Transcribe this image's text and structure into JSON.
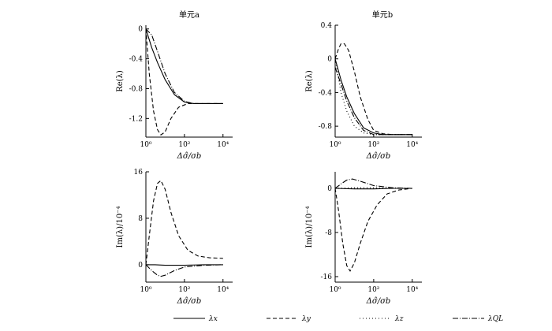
{
  "chart_data": [
    {
      "type": "line",
      "id": "top-left",
      "title": "单元a",
      "xlabel": "Δσ̂/σb",
      "ylabel": "Re(λ)",
      "x_scale": "log",
      "xlim": [
        1,
        31623
      ],
      "ylim": [
        -1.45,
        0.05
      ],
      "xticks": [
        1,
        100,
        10000
      ],
      "xtick_labels": [
        "10⁰",
        "10²",
        "10⁴"
      ],
      "yticks": [
        0,
        -0.4,
        -0.8,
        -1.2
      ],
      "ytick_labels": [
        "0",
        "-0.4",
        "-0.8",
        "-1.2"
      ],
      "series": [
        {
          "name": "λx",
          "style": "solid",
          "x": [
            1,
            2,
            4,
            10,
            30,
            100,
            300,
            1000,
            10000
          ],
          "y": [
            0,
            -0.25,
            -0.45,
            -0.68,
            -0.88,
            -0.98,
            -1.0,
            -1.0,
            -1.0
          ]
        },
        {
          "name": "λy",
          "style": "dashed",
          "x": [
            1,
            1.5,
            2.5,
            4,
            6,
            10,
            20,
            50,
            150,
            500,
            2000,
            10000
          ],
          "y": [
            0,
            -0.6,
            -1.1,
            -1.35,
            -1.42,
            -1.38,
            -1.2,
            -1.05,
            -1.0,
            -1.0,
            -1.0,
            -1.0
          ]
        },
        {
          "name": "λQL",
          "style": "dashdot",
          "x": [
            1,
            2,
            4,
            10,
            30,
            100,
            300,
            1000,
            10000
          ],
          "y": [
            0,
            -0.08,
            -0.3,
            -0.6,
            -0.85,
            -0.97,
            -1.0,
            -1.0,
            -1.0
          ]
        }
      ]
    },
    {
      "type": "line",
      "id": "top-right",
      "title": "单元b",
      "xlabel": "Δσ̂/σb",
      "ylabel": "Re(λ)",
      "x_scale": "log",
      "xlim": [
        1,
        31623
      ],
      "ylim": [
        -0.93,
        0.4
      ],
      "xticks": [
        1,
        100,
        10000
      ],
      "xtick_labels": [
        "10⁰",
        "10²",
        "10⁴"
      ],
      "yticks": [
        0.4,
        0,
        -0.4,
        -0.8
      ],
      "ytick_labels": [
        "0.4",
        "0",
        "-0.4",
        "-0.8"
      ],
      "series": [
        {
          "name": "λx",
          "style": "solid",
          "x": [
            1,
            2,
            4,
            10,
            30,
            100,
            300,
            1000,
            10000
          ],
          "y": [
            0,
            -0.25,
            -0.45,
            -0.65,
            -0.82,
            -0.88,
            -0.9,
            -0.9,
            -0.9
          ]
        },
        {
          "name": "λy",
          "style": "dashed",
          "x": [
            1,
            1.5,
            2,
            3,
            5,
            10,
            20,
            50,
            100,
            300,
            1000,
            10000
          ],
          "y": [
            0,
            0.12,
            0.18,
            0.18,
            0.1,
            -0.15,
            -0.45,
            -0.72,
            -0.85,
            -0.89,
            -0.9,
            -0.9
          ]
        },
        {
          "name": "λz",
          "style": "dotdash",
          "x": [
            1,
            2,
            4,
            10,
            30,
            100,
            300,
            1000,
            10000
          ],
          "y": [
            0,
            -0.4,
            -0.62,
            -0.8,
            -0.88,
            -0.9,
            -0.9,
            -0.9,
            -0.9
          ]
        },
        {
          "name": "λQL",
          "style": "dashdot",
          "x": [
            1,
            2,
            4,
            10,
            30,
            100,
            300,
            1000,
            10000
          ],
          "y": [
            -0.1,
            -0.3,
            -0.5,
            -0.7,
            -0.85,
            -0.9,
            -0.9,
            -0.9,
            -0.9
          ]
        }
      ]
    },
    {
      "type": "line",
      "id": "bottom-left",
      "title": "",
      "xlabel": "Δσ̂/σb",
      "ylabel": "Im(λ)/10⁻⁴",
      "x_scale": "log",
      "xlim": [
        1,
        31623
      ],
      "ylim": [
        -3,
        16
      ],
      "xticks": [
        1,
        100,
        10000
      ],
      "xtick_labels": [
        "10⁰",
        "10²",
        "10⁴"
      ],
      "yticks": [
        16,
        8,
        0
      ],
      "ytick_labels": [
        "16",
        "8",
        "0"
      ],
      "series": [
        {
          "name": "λx",
          "style": "solid",
          "x": [
            1,
            3,
            10,
            100,
            1000,
            10000
          ],
          "y": [
            0,
            0,
            -0.1,
            -0.1,
            0,
            0
          ]
        },
        {
          "name": "λy",
          "style": "dashed",
          "x": [
            1,
            1.5,
            2.5,
            4,
            6,
            10,
            20,
            50,
            150,
            500,
            2000,
            10000
          ],
          "y": [
            0,
            5,
            11,
            14,
            14.5,
            13,
            9,
            5,
            2.5,
            1.5,
            1.2,
            1.1
          ]
        },
        {
          "name": "λQL",
          "style": "dashdot",
          "x": [
            1,
            2,
            4,
            6,
            10,
            30,
            100,
            1000,
            10000
          ],
          "y": [
            0,
            -1,
            -1.8,
            -2,
            -1.8,
            -1,
            -0.4,
            -0.1,
            0
          ]
        }
      ]
    },
    {
      "type": "line",
      "id": "bottom-right",
      "title": "",
      "xlabel": "Δσ̂/σb",
      "ylabel": "Im(λ)/10⁻⁴",
      "x_scale": "log",
      "xlim": [
        1,
        31623
      ],
      "ylim": [
        -17,
        3
      ],
      "xticks": [
        1,
        100,
        10000
      ],
      "xtick_labels": [
        "10⁰",
        "10²",
        "10⁴"
      ],
      "yticks": [
        0,
        -8,
        -16
      ],
      "ytick_labels": [
        "0",
        "-8",
        "-16"
      ],
      "series": [
        {
          "name": "λx",
          "style": "solid",
          "x": [
            1,
            10,
            100,
            1000,
            10000
          ],
          "y": [
            0,
            -0.1,
            -0.1,
            0,
            0
          ]
        },
        {
          "name": "λy",
          "style": "dashed",
          "x": [
            1,
            1.5,
            2.5,
            4,
            6,
            10,
            20,
            50,
            150,
            500,
            2000,
            10000
          ],
          "y": [
            0,
            -4,
            -10,
            -14,
            -15,
            -13.5,
            -10,
            -6,
            -3,
            -1,
            -0.3,
            0
          ]
        },
        {
          "name": "λz",
          "style": "dotdash",
          "x": [
            1,
            10,
            100,
            1000,
            10000
          ],
          "y": [
            0,
            0.1,
            0.1,
            0,
            0
          ]
        },
        {
          "name": "λQL",
          "style": "dashdot",
          "x": [
            1,
            2,
            4,
            8,
            20,
            100,
            1000,
            10000
          ],
          "y": [
            0,
            0.8,
            1.5,
            1.7,
            1.3,
            0.5,
            0.1,
            0
          ]
        }
      ]
    }
  ],
  "legend": {
    "placement": "bottom",
    "items": [
      {
        "label": "λx",
        "style": "solid"
      },
      {
        "label": "λy",
        "style": "dashed"
      },
      {
        "label": "λz",
        "style": "dotdash"
      },
      {
        "label": "λQL",
        "style": "dashdot"
      }
    ]
  }
}
